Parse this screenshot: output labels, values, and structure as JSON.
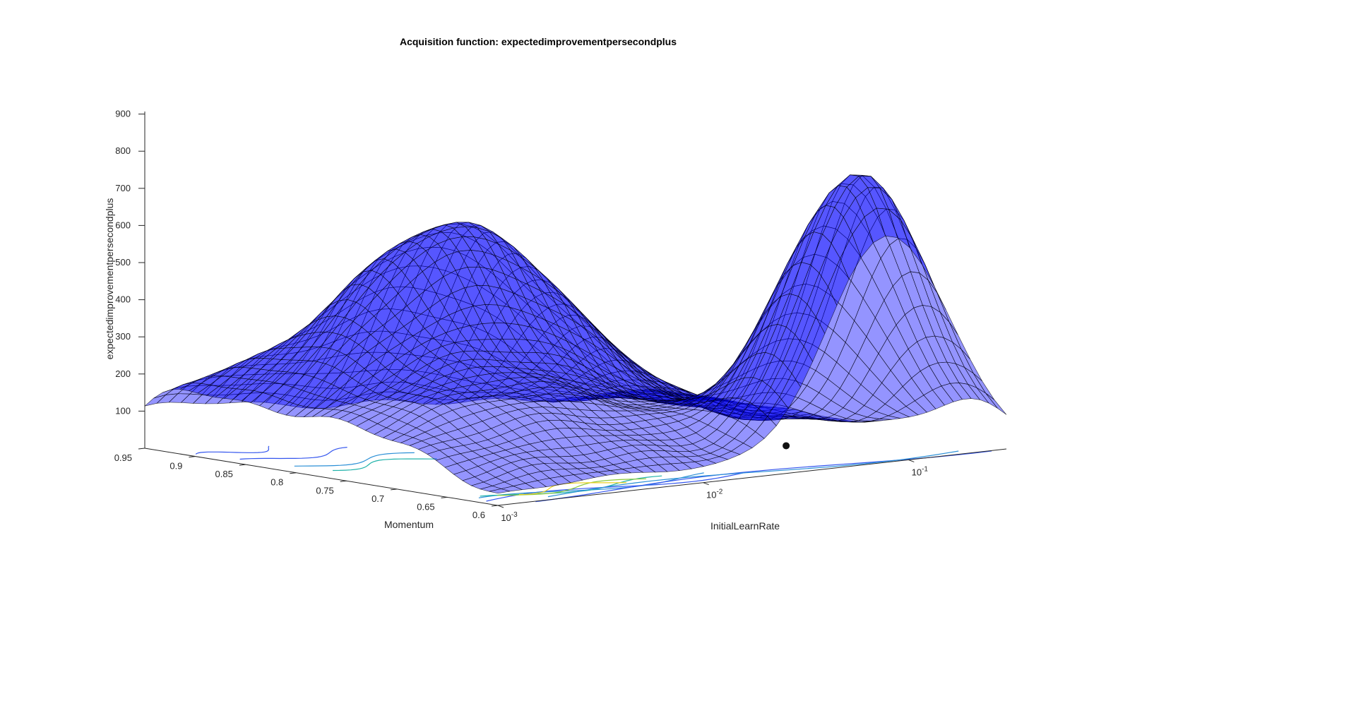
{
  "chart_data": {
    "type": "surface",
    "title": "Acquisition function: expectedimprovementpersecondplus",
    "xlabel": "InitialLearnRate",
    "ylabel": "Momentum",
    "zlabel": "expectedimprovementpersecondplus",
    "x_scale": "log",
    "x_ticks": [
      {
        "base": "10",
        "exp": "-3"
      },
      {
        "base": "10",
        "exp": "-2"
      },
      {
        "base": "10",
        "exp": "-1"
      }
    ],
    "y_ticks": [
      "0.95",
      "0.9",
      "0.85",
      "0.8",
      "0.75",
      "0.7",
      "0.65",
      "0.6"
    ],
    "z_ticks": [
      "100",
      "200",
      "300",
      "400",
      "500",
      "600",
      "700",
      "800",
      "900"
    ],
    "xlim": [
      0.001,
      0.3
    ],
    "ylim": [
      0.6,
      0.95
    ],
    "zlim": [
      0,
      900
    ],
    "surface_color": "#0000ff",
    "surface_edge_color": "#000000",
    "contour_colors": [
      "#3355ee",
      "#2a8fd6",
      "#20b2aa",
      "#8cc83c",
      "#e8d020"
    ],
    "grid": false,
    "peaks": [
      {
        "x": 0.08,
        "y": 0.63,
        "z": 750
      },
      {
        "x": 0.01,
        "y": 0.85,
        "z": 520
      }
    ],
    "marker": {
      "x": 0.05,
      "y": 0.66,
      "z": 30
    }
  }
}
